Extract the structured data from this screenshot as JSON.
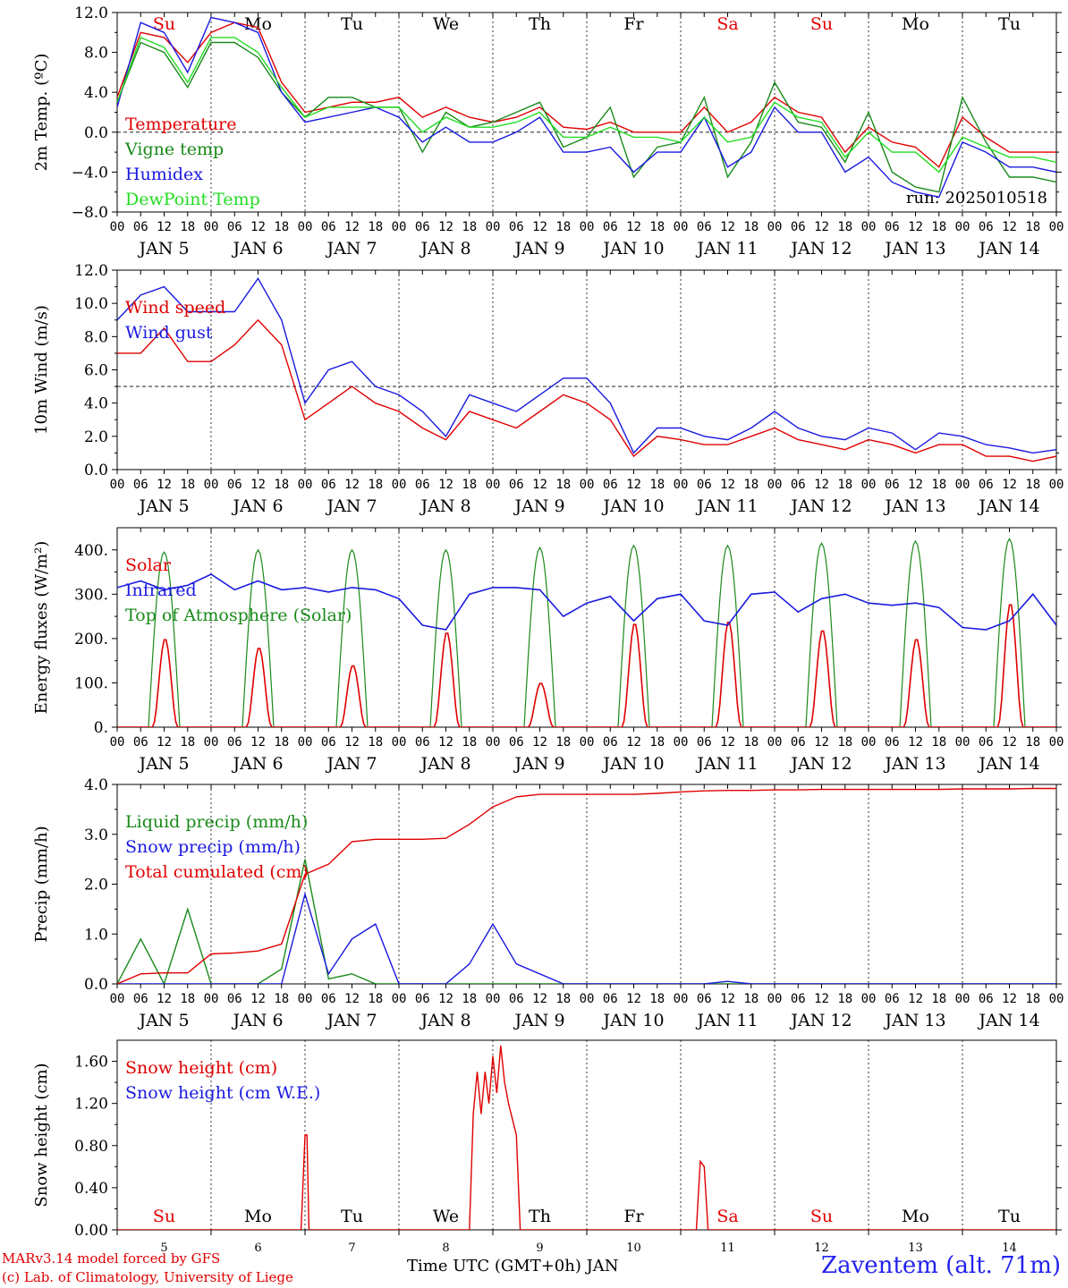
{
  "days": {
    "hours_label": [
      "00",
      "06",
      "12",
      "18"
    ],
    "bottom_label": [
      "JAN 5",
      "JAN 6",
      "JAN 7",
      "JAN 8",
      "JAN 9",
      "JAN 10",
      "JAN 11",
      "JAN 12",
      "JAN 13",
      "JAN 14"
    ],
    "weekday": [
      "Su",
      "Mo",
      "Tu",
      "We",
      "Th",
      "Fr",
      "Sa",
      "Su",
      "Mo",
      "Tu"
    ],
    "weekday_color": [
      "#e00000",
      "#000000",
      "#000000",
      "#000000",
      "#000000",
      "#000000",
      "#e00000",
      "#e00000",
      "#000000",
      "#000000"
    ],
    "snow_day_number": [
      "5",
      "6",
      "7",
      "8",
      "9",
      "10",
      "11",
      "12",
      "13",
      "14"
    ]
  },
  "footer": {
    "model": "MARv3.14 model forced by GFS",
    "lab": "(c) Lab. of Climatology, University of Liege",
    "time_label": "Time UTC (GMT+0h) JAN",
    "station": "Zaventem (alt. 71m)"
  },
  "chart_data": [
    {
      "id": "temp",
      "type": "line",
      "ylabel": "2m Temp. (ºC)",
      "ylim": [
        -8,
        12
      ],
      "yticks": [
        "12.0",
        "8.0",
        "4.0",
        "0.0",
        "−4.0",
        "−8.0"
      ],
      "ytick_values": [
        12,
        8,
        4,
        0,
        -4,
        -8
      ],
      "refline": 0,
      "run": "run: 2025010518",
      "x_hours": [
        0,
        6,
        12,
        18,
        24,
        30,
        36,
        42,
        48,
        54,
        60,
        66,
        72,
        78,
        84,
        90,
        96,
        102,
        108,
        114,
        120,
        126,
        132,
        138,
        144,
        150,
        156,
        162,
        168,
        174,
        180,
        186,
        192,
        198,
        204,
        210,
        216,
        222,
        228,
        234,
        240
      ],
      "series": [
        {
          "name": "Temperature",
          "color": "#e00000",
          "values": [
            3.5,
            10.0,
            9.5,
            7.0,
            10.0,
            11.0,
            10.5,
            5.0,
            2.0,
            2.5,
            3.0,
            3.0,
            3.5,
            1.5,
            2.5,
            1.5,
            1.0,
            1.5,
            2.5,
            0.5,
            0.3,
            1.0,
            0.0,
            0.0,
            0.0,
            2.5,
            0.0,
            1.0,
            3.5,
            2.0,
            1.5,
            -2.0,
            0.5,
            -1.0,
            -1.5,
            -3.5,
            1.5,
            -0.5,
            -2.0,
            -2.0,
            -2.0
          ]
        },
        {
          "name": "Vigne temp",
          "color": "#1a8a1a",
          "values": [
            3.0,
            9.0,
            8.0,
            4.5,
            9.0,
            9.0,
            7.5,
            4.0,
            1.5,
            3.5,
            3.5,
            2.5,
            2.5,
            -2.0,
            2.0,
            0.5,
            1.0,
            2.0,
            3.0,
            -1.5,
            -0.5,
            2.5,
            -4.5,
            -1.5,
            -1.0,
            3.5,
            -4.5,
            -1.0,
            5.0,
            1.0,
            0.5,
            -3.0,
            2.0,
            -4.0,
            -5.5,
            -6.0,
            3.5,
            -1.0,
            -4.5,
            -4.5,
            -5.0
          ]
        },
        {
          "name": "Humidex",
          "color": "#1a1ae0",
          "values": [
            2.5,
            11.0,
            10.0,
            6.0,
            11.5,
            11.0,
            10.0,
            4.0,
            1.0,
            1.5,
            2.0,
            2.5,
            1.5,
            -1.0,
            0.5,
            -1.0,
            -1.0,
            0.0,
            1.5,
            -2.0,
            -2.0,
            -1.5,
            -4.0,
            -2.0,
            -2.0,
            1.5,
            -3.5,
            -2.0,
            2.5,
            0.0,
            0.0,
            -4.0,
            -2.5,
            -5.0,
            -6.0,
            -6.5,
            -1.0,
            -2.0,
            -3.5,
            -3.5,
            -4.0
          ]
        },
        {
          "name": "DewPoint Temp",
          "color": "#22dd22",
          "values": [
            3.0,
            9.5,
            8.5,
            5.0,
            9.5,
            9.5,
            8.0,
            4.5,
            1.5,
            2.5,
            2.5,
            2.5,
            2.5,
            0.0,
            1.5,
            0.5,
            0.5,
            1.0,
            2.0,
            -0.5,
            -0.5,
            0.5,
            -0.5,
            -0.5,
            -1.0,
            1.5,
            -1.0,
            -0.5,
            3.0,
            1.5,
            1.0,
            -2.5,
            0.0,
            -2.0,
            -2.0,
            -4.0,
            -0.5,
            -1.5,
            -2.5,
            -2.5,
            -3.0
          ]
        }
      ]
    },
    {
      "id": "wind",
      "type": "line",
      "ylabel": "10m Wind (m/s)",
      "ylim": [
        0,
        12
      ],
      "yticks": [
        "12.0",
        "10.0",
        "8.0",
        "6.0",
        "4.0",
        "2.0",
        "0.0"
      ],
      "ytick_values": [
        12,
        10,
        8,
        6,
        4,
        2,
        0
      ],
      "refline": 5,
      "x_hours": [
        0,
        6,
        12,
        18,
        24,
        30,
        36,
        42,
        48,
        54,
        60,
        66,
        72,
        78,
        84,
        90,
        96,
        102,
        108,
        114,
        120,
        126,
        132,
        138,
        144,
        150,
        156,
        162,
        168,
        174,
        180,
        186,
        192,
        198,
        204,
        210,
        216,
        222,
        228,
        234,
        240
      ],
      "series": [
        {
          "name": "Wind speed",
          "color": "#e00000",
          "values": [
            7.0,
            7.0,
            8.5,
            6.5,
            6.5,
            7.5,
            9.0,
            7.5,
            3.0,
            4.0,
            5.0,
            4.0,
            3.5,
            2.5,
            1.8,
            3.5,
            3.0,
            2.5,
            3.5,
            4.5,
            4.0,
            3.0,
            0.8,
            2.0,
            1.8,
            1.5,
            1.5,
            2.0,
            2.5,
            1.8,
            1.5,
            1.2,
            1.8,
            1.5,
            1.0,
            1.5,
            1.5,
            0.8,
            0.8,
            0.5,
            0.8
          ]
        },
        {
          "name": "Wind gust",
          "color": "#1a1ae0",
          "values": [
            9.0,
            10.5,
            11.0,
            9.5,
            9.5,
            9.5,
            11.5,
            9.0,
            4.0,
            6.0,
            6.5,
            5.0,
            4.5,
            3.5,
            2.0,
            4.5,
            4.0,
            3.5,
            4.5,
            5.5,
            5.5,
            4.0,
            1.0,
            2.5,
            2.5,
            2.0,
            1.8,
            2.5,
            3.5,
            2.5,
            2.0,
            1.8,
            2.5,
            2.2,
            1.2,
            2.2,
            2.0,
            1.5,
            1.3,
            1.0,
            1.2
          ]
        }
      ]
    },
    {
      "id": "energy",
      "type": "line",
      "ylabel": "Energy fluxes (W/m²)",
      "ylim": [
        0,
        450
      ],
      "yticks": [
        "400.",
        "300.",
        "200.",
        "100.",
        "0."
      ],
      "ytick_values": [
        400,
        300,
        200,
        100,
        0
      ],
      "solar_peaks": [
        200,
        180,
        140,
        215,
        100,
        235,
        240,
        220,
        200,
        280
      ],
      "toa_peaks": [
        395,
        400,
        400,
        400,
        405,
        410,
        410,
        415,
        420,
        425
      ],
      "x_hours": [
        0,
        6,
        12,
        18,
        24,
        30,
        36,
        42,
        48,
        54,
        60,
        66,
        72,
        78,
        84,
        90,
        96,
        102,
        108,
        114,
        120,
        126,
        132,
        138,
        144,
        150,
        156,
        162,
        168,
        174,
        180,
        186,
        192,
        198,
        204,
        210,
        216,
        222,
        228,
        234,
        240
      ],
      "series": [
        {
          "name": "Solar",
          "color": "#e00000"
        },
        {
          "name": "Infrared",
          "color": "#1a1ae0",
          "values": [
            315,
            330,
            310,
            320,
            345,
            310,
            330,
            310,
            315,
            305,
            315,
            310,
            290,
            230,
            220,
            300,
            315,
            315,
            310,
            250,
            280,
            295,
            240,
            290,
            300,
            240,
            230,
            300,
            305,
            260,
            290,
            300,
            280,
            275,
            280,
            270,
            225,
            220,
            240,
            300,
            230
          ]
        },
        {
          "name": "Top of Atmosphere (Solar)",
          "color": "#1a8a1a"
        }
      ]
    },
    {
      "id": "precip",
      "type": "line",
      "ylabel": "Precip (mm/h)",
      "ylim": [
        0,
        4
      ],
      "yticks": [
        "4.0",
        "3.0",
        "2.0",
        "1.0",
        "0.0"
      ],
      "ytick_values": [
        4,
        3,
        2,
        1,
        0
      ],
      "x_hours": [
        0,
        6,
        12,
        18,
        24,
        30,
        36,
        42,
        48,
        54,
        60,
        66,
        72,
        78,
        84,
        90,
        96,
        102,
        108,
        114,
        120,
        126,
        132,
        138,
        144,
        150,
        156,
        162,
        168,
        174,
        180,
        186,
        192,
        198,
        204,
        210,
        216,
        222,
        228,
        234,
        240
      ],
      "series": [
        {
          "name": "Liquid precip (mm/h)",
          "color": "#1a8a1a",
          "values": [
            0.0,
            0.9,
            0.0,
            1.5,
            0.0,
            0.0,
            0.0,
            0.3,
            2.5,
            0.1,
            0.2,
            0.0,
            0.0,
            0.0,
            0.0,
            0.0,
            0.0,
            0.0,
            0.0,
            0.0,
            0.0,
            0.0,
            0.0,
            0.0,
            0.0,
            0.0,
            0.0,
            0.0,
            0.0,
            0.0,
            0.0,
            0.0,
            0.0,
            0.0,
            0.0,
            0.0,
            0.0,
            0.0,
            0.0,
            0.0,
            0.0
          ]
        },
        {
          "name": "Snow precip (mm/h)",
          "color": "#1a1ae0",
          "values": [
            0.0,
            0.0,
            0.0,
            0.0,
            0.0,
            0.0,
            0.0,
            0.0,
            1.8,
            0.2,
            0.9,
            1.2,
            0.0,
            0.0,
            0.0,
            0.4,
            1.2,
            0.4,
            0.2,
            0.0,
            0.0,
            0.0,
            0.0,
            0.0,
            0.0,
            0.0,
            0.05,
            0.0,
            0.0,
            0.0,
            0.0,
            0.0,
            0.0,
            0.0,
            0.0,
            0.0,
            0.0,
            0.0,
            0.0,
            0.0,
            0.0
          ]
        },
        {
          "name": "Total cumulated (cm)",
          "color": "#e00000",
          "values": [
            0.0,
            0.2,
            0.22,
            0.22,
            0.6,
            0.62,
            0.66,
            0.8,
            2.2,
            2.4,
            2.85,
            2.9,
            2.9,
            2.9,
            2.92,
            3.2,
            3.55,
            3.75,
            3.8,
            3.8,
            3.8,
            3.8,
            3.8,
            3.82,
            3.85,
            3.87,
            3.88,
            3.88,
            3.89,
            3.89,
            3.9,
            3.9,
            3.9,
            3.9,
            3.9,
            3.9,
            3.91,
            3.91,
            3.91,
            3.92,
            3.92
          ]
        }
      ]
    },
    {
      "id": "snow",
      "type": "line",
      "ylabel": "Snow height (cm)",
      "ylim": [
        0,
        1.8
      ],
      "yticks": [
        "1.60",
        "1.20",
        "0.80",
        "0.40",
        "0.00"
      ],
      "ytick_values": [
        1.6,
        1.2,
        0.8,
        0.4,
        0.0
      ],
      "x_hours": [
        0,
        47,
        48,
        48.5,
        49,
        90,
        91,
        92,
        93,
        94,
        95,
        96,
        97,
        98,
        99,
        100,
        102,
        103,
        104,
        148,
        149,
        150,
        151,
        240
      ],
      "series": [
        {
          "name": "Snow height (cm)",
          "color": "#e00000",
          "values": [
            0,
            0,
            0.9,
            0.9,
            0,
            0,
            1.1,
            1.5,
            1.1,
            1.5,
            1.2,
            1.65,
            1.3,
            1.75,
            1.4,
            1.2,
            0.9,
            0,
            0,
            0,
            0.65,
            0.6,
            0,
            0
          ]
        },
        {
          "name": "Snow height (cm W.E.)",
          "color": "#1a1ae0"
        }
      ]
    }
  ]
}
